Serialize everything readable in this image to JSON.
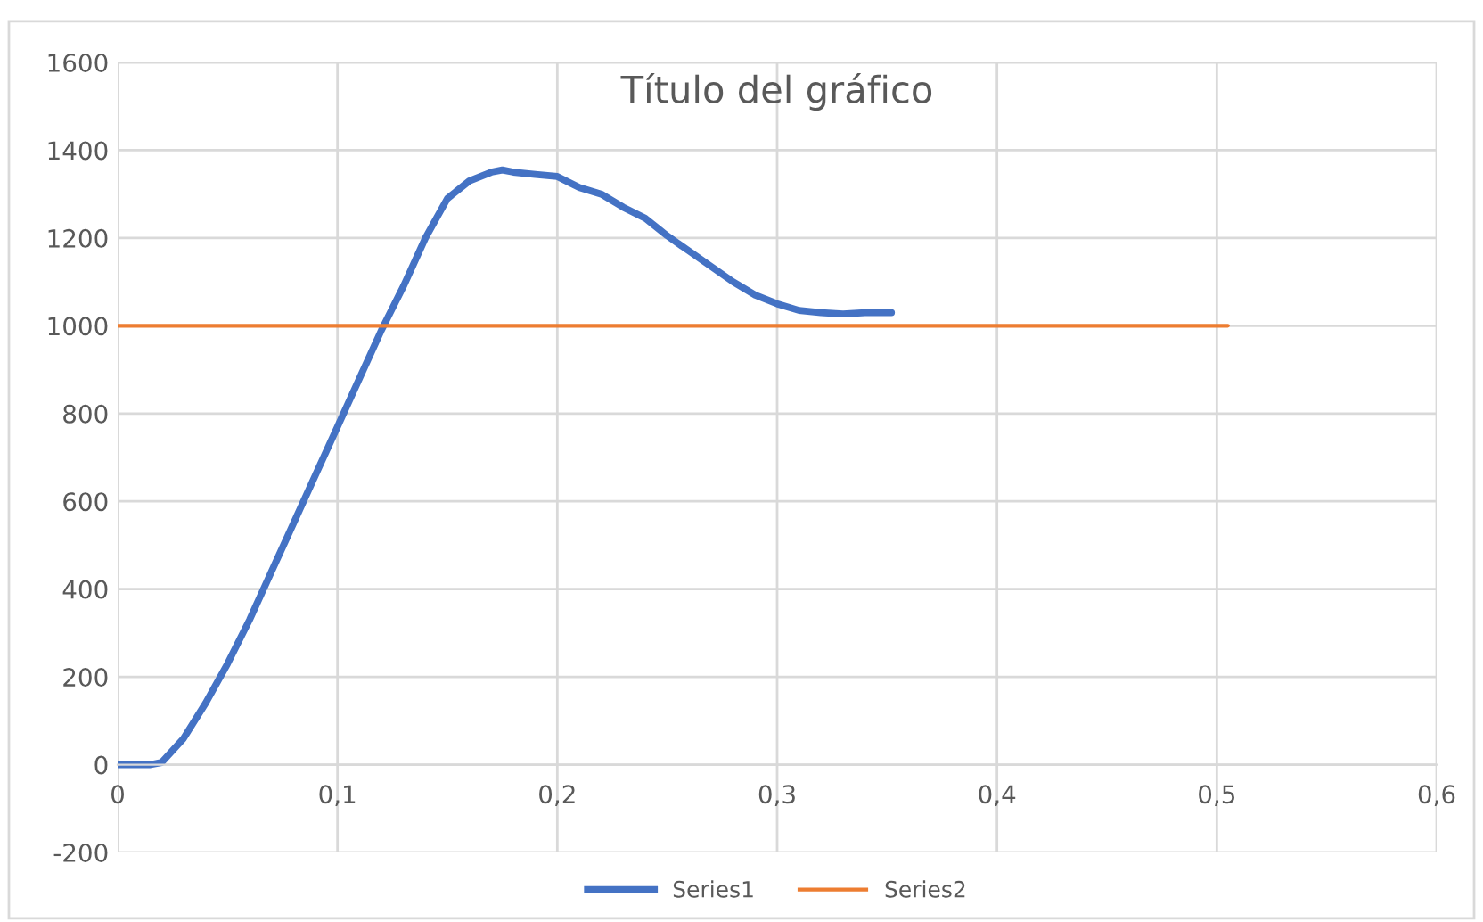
{
  "chart_data": {
    "type": "line",
    "title": "Título del gráfico",
    "xlim": [
      0,
      0.6
    ],
    "xticks": [
      0,
      {
        "value": 0.1,
        "label": "0,1"
      },
      {
        "value": 0.2,
        "label": "0,2"
      },
      {
        "value": 0.3,
        "label": "0,3"
      },
      {
        "value": 0.4,
        "label": "0,4"
      },
      {
        "value": 0.5,
        "label": "0,5"
      },
      {
        "value": 0.6,
        "label": "0,6"
      }
    ],
    "ylim": [
      -200,
      1600
    ],
    "yticks": [
      -200,
      0,
      200,
      400,
      600,
      800,
      1000,
      1200,
      1400,
      1600
    ],
    "grid": true,
    "legend": "bottom",
    "marker": "none",
    "line_style": "solid",
    "series": [
      {
        "name": "Series1",
        "color": "#4472c4",
        "x": [
          0,
          0.015,
          0.02,
          0.03,
          0.04,
          0.05,
          0.06,
          0.07,
          0.08,
          0.09,
          0.1,
          0.11,
          0.12,
          0.13,
          0.14,
          0.15,
          0.16,
          0.17,
          0.175,
          0.18,
          0.19,
          0.2,
          0.21,
          0.22,
          0.23,
          0.24,
          0.25,
          0.26,
          0.27,
          0.28,
          0.29,
          0.3,
          0.31,
          0.32,
          0.33,
          0.34,
          0.352
        ],
        "values": [
          0,
          0,
          5,
          60,
          140,
          230,
          330,
          440,
          550,
          660,
          770,
          880,
          990,
          1090,
          1200,
          1290,
          1330,
          1350,
          1355,
          1350,
          1345,
          1340,
          1315,
          1300,
          1270,
          1245,
          1205,
          1170,
          1135,
          1100,
          1070,
          1050,
          1035,
          1030,
          1027,
          1030,
          1030
        ]
      },
      {
        "name": "Series2",
        "color": "#ed7d31",
        "x": [
          0,
          0.505
        ],
        "values": [
          1000,
          1000
        ]
      }
    ]
  }
}
